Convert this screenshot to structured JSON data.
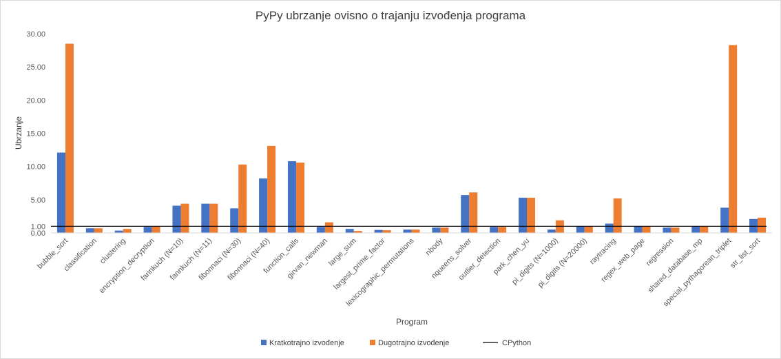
{
  "chart_data": {
    "type": "bar",
    "title": "PyPy ubrzanje ovisno o trajanju izvođenja programa",
    "xlabel": "Program",
    "ylabel": "Ubrzanje",
    "ylim": [
      0,
      30
    ],
    "yticks": [
      "0.00",
      "1.00",
      "5.00",
      "10.00",
      "15.00",
      "20.00",
      "25.00",
      "30.00"
    ],
    "ytick_values": [
      0,
      1,
      5,
      10,
      15,
      20,
      25,
      30
    ],
    "grid": false,
    "legend_position": "bottom",
    "categories": [
      "bubble_sort",
      "classification",
      "clustering",
      "encryption_decryption",
      "fannkuch (N=10)",
      "fannkuch (N=11)",
      "fibonnaci (N=30)",
      "fibonnaci (N=40)",
      "function_calls",
      "girvan_newman",
      "large_sum",
      "largest_prime_factor",
      "lexicographic_permutations",
      "nbody",
      "nqueens_solver",
      "outlier_detection",
      "park_chen_yu",
      "pi_digits (N=1000)",
      "pi_digits (N=20000)",
      "raytracing",
      "regex_web_page",
      "regression",
      "shared_database_mp",
      "special_pythagorean_triplet",
      "str_list_sort"
    ],
    "series": [
      {
        "name": "Kratkotrajno izvođenje",
        "color": "#4472c4",
        "values": [
          12.1,
          0.7,
          0.35,
          0.9,
          4.1,
          4.4,
          3.7,
          8.2,
          10.8,
          0.9,
          0.6,
          0.45,
          0.5,
          0.8,
          5.7,
          0.9,
          5.3,
          0.5,
          1.0,
          1.4,
          1.0,
          0.8,
          1.0,
          3.8,
          2.1
        ]
      },
      {
        "name": "Dugotrajno izvođenje",
        "color": "#ed7d31",
        "values": [
          28.5,
          0.7,
          0.6,
          1.0,
          4.4,
          4.4,
          10.3,
          13.1,
          10.6,
          1.6,
          0.3,
          0.4,
          0.5,
          0.8,
          6.1,
          0.9,
          5.3,
          1.9,
          1.0,
          5.2,
          1.0,
          0.8,
          1.0,
          28.3,
          2.3
        ]
      }
    ],
    "reference_line": {
      "name": "CPython",
      "value": 1.0,
      "color": "#000000"
    }
  }
}
